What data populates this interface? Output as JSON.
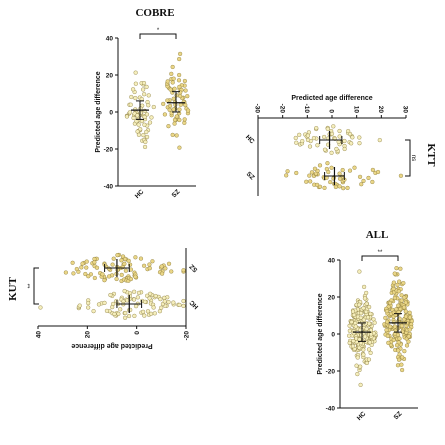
{
  "chart_data": [
    {
      "id": "cobre",
      "type": "scatter",
      "title": "COBRE",
      "ylabel": "Predicted age difference",
      "ylim": [
        -40,
        40
      ],
      "yticks": [
        -40,
        -20,
        0,
        20,
        40
      ],
      "categories": [
        "HC",
        "SZ"
      ],
      "rotated_quadrant": "none",
      "significance": "*",
      "colors": {
        "HC": "#f5eebc",
        "SZ": "#ead687"
      },
      "groups": [
        {
          "name": "HC",
          "n": 70,
          "mean": 1,
          "sd": 10,
          "err_low": -4,
          "err_high": 6
        },
        {
          "name": "SZ",
          "n": 70,
          "mean": 5,
          "sd": 10,
          "err_low": 0,
          "err_high": 11
        }
      ]
    },
    {
      "id": "ktt",
      "type": "scatter",
      "title": "KTT",
      "ylabel": "Predicted age difference",
      "ylim": [
        -30,
        30
      ],
      "yticks": [
        -30,
        -20,
        -10,
        0,
        10,
        20,
        30
      ],
      "categories": [
        "HC",
        "SZ"
      ],
      "rotated_quadrant": "left",
      "significance": "ns",
      "colors": {
        "HC": "#f5eebc",
        "SZ": "#ead687"
      },
      "groups": [
        {
          "name": "HC",
          "n": 55,
          "mean": -1,
          "sd": 8,
          "err_low": -5,
          "err_high": 4
        },
        {
          "name": "SZ",
          "n": 55,
          "mean": 1,
          "sd": 9,
          "err_low": -3,
          "err_high": 5
        }
      ]
    },
    {
      "id": "kut",
      "type": "scatter",
      "title": "KUT",
      "ylabel": "Predicted age difference",
      "ylim": [
        -20,
        40
      ],
      "yticks": [
        -20,
        0,
        20,
        40
      ],
      "categories": [
        "HC",
        "SZ"
      ],
      "rotated_quadrant": "right",
      "significance": "**",
      "colors": {
        "HC": "#f5eebc",
        "SZ": "#ead687"
      },
      "groups": [
        {
          "name": "HC",
          "n": 90,
          "mean": 3,
          "sd": 10,
          "err_low": -2,
          "err_high": 8
        },
        {
          "name": "SZ",
          "n": 90,
          "mean": 8,
          "sd": 10,
          "err_low": 3,
          "err_high": 13
        }
      ]
    },
    {
      "id": "all",
      "type": "scatter",
      "title": "ALL",
      "ylabel": "Predicted age difference",
      "ylim": [
        -40,
        40
      ],
      "yticks": [
        -40,
        -20,
        0,
        20,
        40
      ],
      "categories": [
        "HC",
        "SZ"
      ],
      "rotated_quadrant": "none",
      "significance": "**",
      "colors": {
        "HC": "#f5eebc",
        "SZ": "#ead687"
      },
      "groups": [
        {
          "name": "HC",
          "n": 200,
          "mean": 1,
          "sd": 10,
          "err_low": -4,
          "err_high": 6
        },
        {
          "name": "SZ",
          "n": 200,
          "mean": 6,
          "sd": 11,
          "err_low": 1,
          "err_high": 11
        }
      ]
    }
  ]
}
